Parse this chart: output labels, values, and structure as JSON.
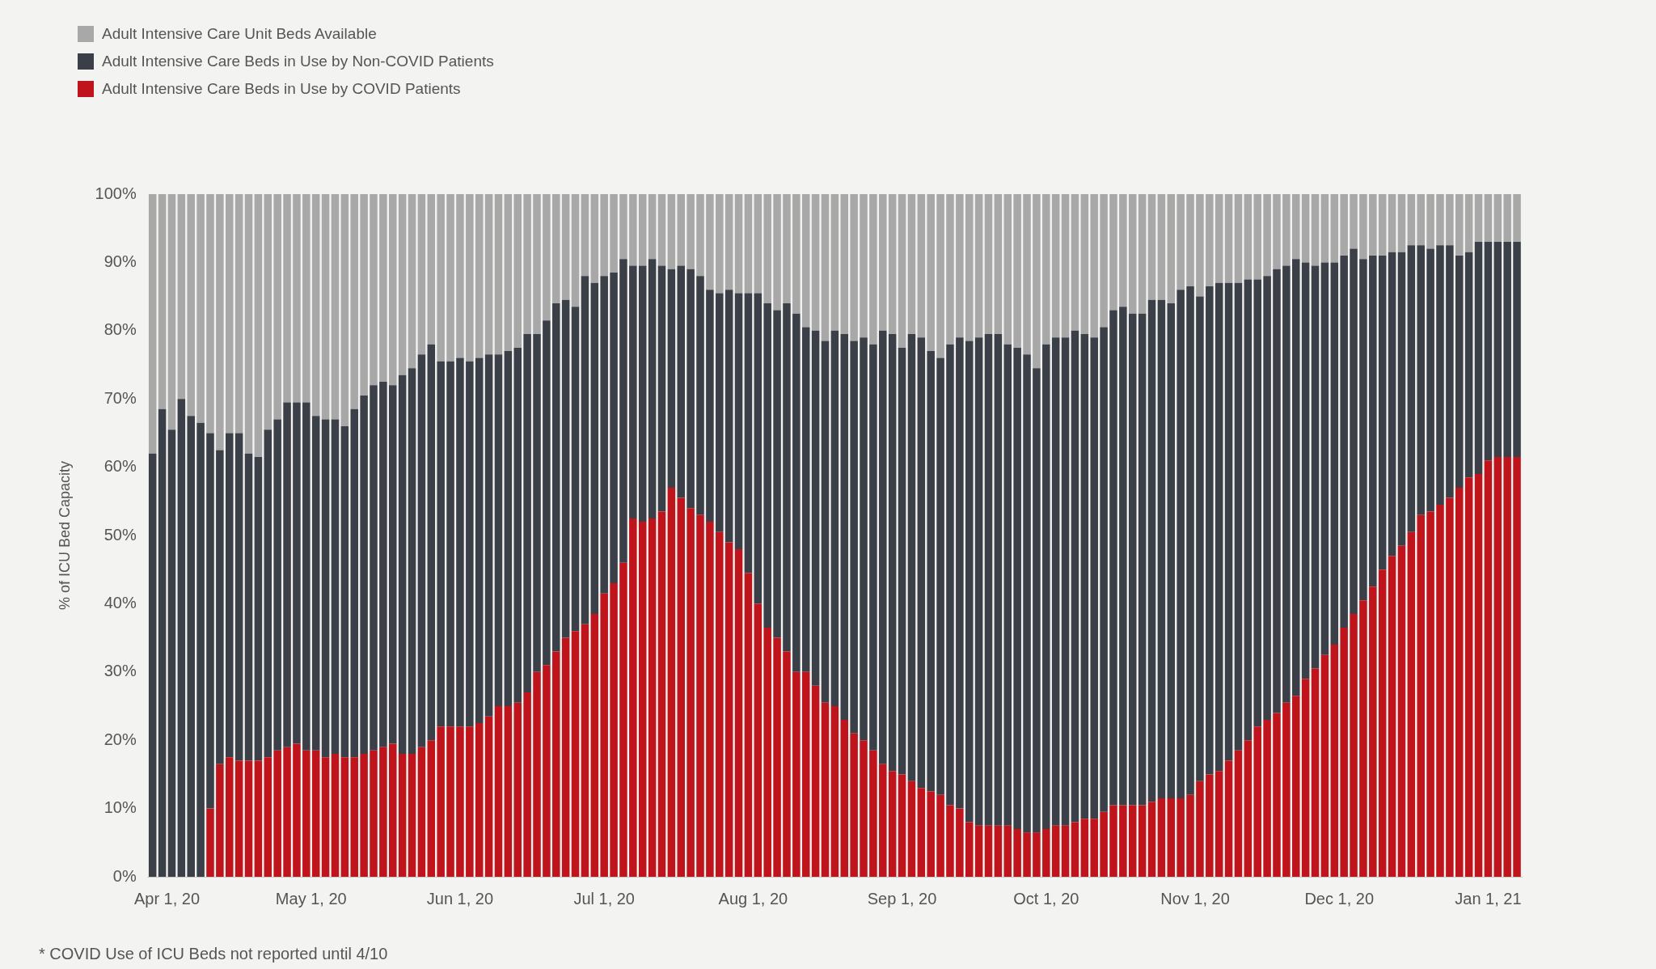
{
  "chart_data": {
    "type": "bar",
    "stacked": true,
    "ylabel": "% of ICU Bed Capacity",
    "legend": "top left",
    "annotations": [
      "* COVID Use of ICU Beds not reported until 4/10"
    ],
    "x": [
      "2020-03-29",
      "2020-03-31",
      "2020-04-02",
      "2020-04-04",
      "2020-04-06",
      "2020-04-08",
      "2020-04-10",
      "2020-04-12",
      "2020-04-14",
      "2020-04-16",
      "2020-04-18",
      "2020-04-20",
      "2020-04-22",
      "2020-04-24",
      "2020-04-26",
      "2020-04-28",
      "2020-04-30",
      "2020-05-02",
      "2020-05-04",
      "2020-05-06",
      "2020-05-08",
      "2020-05-10",
      "2020-05-12",
      "2020-05-14",
      "2020-05-16",
      "2020-05-18",
      "2020-05-20",
      "2020-05-22",
      "2020-05-24",
      "2020-05-26",
      "2020-05-28",
      "2020-05-30",
      "2020-06-01",
      "2020-06-03",
      "2020-06-05",
      "2020-06-07",
      "2020-06-09",
      "2020-06-11",
      "2020-06-13",
      "2020-06-15",
      "2020-06-17",
      "2020-06-19",
      "2020-06-21",
      "2020-06-23",
      "2020-06-25",
      "2020-06-27",
      "2020-06-29",
      "2020-07-01",
      "2020-07-03",
      "2020-07-05",
      "2020-07-07",
      "2020-07-09",
      "2020-07-11",
      "2020-07-13",
      "2020-07-15",
      "2020-07-17",
      "2020-07-19",
      "2020-07-21",
      "2020-07-23",
      "2020-07-25",
      "2020-07-27",
      "2020-07-29",
      "2020-07-31",
      "2020-08-02",
      "2020-08-04",
      "2020-08-06",
      "2020-08-08",
      "2020-08-10",
      "2020-08-12",
      "2020-08-14",
      "2020-08-16",
      "2020-08-18",
      "2020-08-20",
      "2020-08-22",
      "2020-08-24",
      "2020-08-26",
      "2020-08-28",
      "2020-08-30",
      "2020-09-01",
      "2020-09-03",
      "2020-09-05",
      "2020-09-07",
      "2020-09-09",
      "2020-09-11",
      "2020-09-13",
      "2020-09-15",
      "2020-09-17",
      "2020-09-19",
      "2020-09-21",
      "2020-09-23",
      "2020-09-25",
      "2020-09-27",
      "2020-09-29",
      "2020-10-01",
      "2020-10-03",
      "2020-10-05",
      "2020-10-07",
      "2020-10-09",
      "2020-10-11",
      "2020-10-13",
      "2020-10-15",
      "2020-10-17",
      "2020-10-19",
      "2020-10-21",
      "2020-10-23",
      "2020-10-25",
      "2020-10-27",
      "2020-10-29",
      "2020-10-31",
      "2020-11-02",
      "2020-11-04",
      "2020-11-06",
      "2020-11-08",
      "2020-11-10",
      "2020-11-12",
      "2020-11-14",
      "2020-11-16",
      "2020-11-18",
      "2020-11-20",
      "2020-11-22",
      "2020-11-24",
      "2020-11-26",
      "2020-11-28",
      "2020-11-30",
      "2020-12-02",
      "2020-12-04",
      "2020-12-06",
      "2020-12-08",
      "2020-12-10",
      "2020-12-12",
      "2020-12-14",
      "2020-12-16",
      "2020-12-18",
      "2020-12-20",
      "2020-12-22",
      "2020-12-24",
      "2020-12-26",
      "2020-12-28",
      "2020-12-30",
      "2021-01-01",
      "2021-01-03",
      "2021-01-05",
      "2021-01-07"
    ],
    "xlim": [
      "2020-03-28",
      "2021-01-08"
    ],
    "xticks": [
      {
        "value": "2020-04-01",
        "label": "Apr 1, 20"
      },
      {
        "value": "2020-05-01",
        "label": "May 1, 20"
      },
      {
        "value": "2020-06-01",
        "label": "Jun 1, 20"
      },
      {
        "value": "2020-07-01",
        "label": "Jul 1, 20"
      },
      {
        "value": "2020-08-01",
        "label": "Aug 1, 20"
      },
      {
        "value": "2020-09-01",
        "label": "Sep 1, 20"
      },
      {
        "value": "2020-10-01",
        "label": "Oct 1, 20"
      },
      {
        "value": "2020-11-01",
        "label": "Nov 1, 20"
      },
      {
        "value": "2020-12-01",
        "label": "Dec 1, 20"
      },
      {
        "value": "2021-01-01",
        "label": "Jan 1, 21"
      }
    ],
    "ylim": [
      0,
      100
    ],
    "yticks": [
      {
        "value": 0,
        "label": "0%"
      },
      {
        "value": 10,
        "label": "10%"
      },
      {
        "value": 20,
        "label": "20%"
      },
      {
        "value": 30,
        "label": "30%"
      },
      {
        "value": 40,
        "label": "40%"
      },
      {
        "value": 50,
        "label": "50%"
      },
      {
        "value": 60,
        "label": "60%"
      },
      {
        "value": 70,
        "label": "70%"
      },
      {
        "value": 80,
        "label": "80%"
      },
      {
        "value": 90,
        "label": "90%"
      },
      {
        "value": 100,
        "label": "100%"
      }
    ],
    "series": [
      {
        "name": "Adult Intensive Care Beds in Use by COVID Patients",
        "color": "#c0141c",
        "values": [
          null,
          null,
          null,
          null,
          null,
          null,
          10,
          16.5,
          17.5,
          17,
          17,
          17,
          17.5,
          18.5,
          19,
          19.5,
          18.5,
          18.5,
          17.5,
          18,
          17.5,
          17.5,
          18,
          18.5,
          19,
          19.5,
          18,
          18,
          19,
          20,
          22,
          22,
          22,
          22,
          22.5,
          23.5,
          25,
          25,
          25.5,
          27,
          30,
          31,
          33,
          35,
          36,
          37,
          38.5,
          41.5,
          43,
          46,
          52.5,
          52,
          52.5,
          53.5,
          57,
          55.5,
          54,
          53,
          52,
          50.5,
          49,
          48,
          44.5,
          40,
          36.5,
          35,
          33,
          30,
          30,
          28,
          25.5,
          25,
          23,
          21,
          20,
          18.5,
          16.5,
          15.5,
          15,
          14,
          13,
          12.5,
          12,
          10.5,
          10,
          8,
          7.5,
          7.5,
          7.5,
          7.5,
          7,
          6.5,
          6.5,
          7,
          7.5,
          7.5,
          8,
          8.5,
          8.5,
          9.5,
          10.5,
          10.5,
          10.5,
          10.5,
          11,
          11.5,
          11.5,
          11.5,
          12,
          14,
          15,
          15.5,
          17,
          18.5,
          20,
          22,
          23,
          24,
          25.5,
          26.5,
          29,
          30.5,
          32.5,
          34,
          36.5,
          38.5,
          40.5,
          42.5,
          45,
          47,
          48.5,
          50.5,
          53,
          53.5,
          54.5,
          55.5,
          57,
          58.5,
          59,
          61,
          61.5,
          61.5,
          61.5
        ]
      },
      {
        "name": "Adult Intensive Care Beds in Use by Non-COVID Patients",
        "color": "#3b3f48",
        "values": [
          62,
          68.5,
          65.5,
          70,
          67.5,
          66.5,
          55,
          46,
          47.5,
          48,
          45,
          44.5,
          48,
          48.5,
          50.5,
          50,
          51,
          49,
          49.5,
          49,
          48.5,
          51,
          52.5,
          53.5,
          53.5,
          52.5,
          55.5,
          56.5,
          57.5,
          58,
          53.5,
          53.5,
          54,
          53.5,
          53.5,
          53,
          51.5,
          52,
          52,
          52.5,
          49.5,
          50.5,
          51,
          49.5,
          47.5,
          51,
          48.5,
          46.5,
          45.5,
          44.5,
          37,
          37.5,
          38,
          36,
          32,
          34,
          35,
          35,
          34,
          35,
          37,
          37.5,
          41,
          45.5,
          47.5,
          48,
          51,
          52.5,
          50.5,
          52,
          53,
          55,
          56.5,
          57.5,
          59,
          59.5,
          63.5,
          64,
          62.5,
          65.5,
          66,
          64.5,
          64,
          67.5,
          69,
          70.5,
          71.5,
          72,
          72,
          70.5,
          70.5,
          70,
          68,
          71,
          71.5,
          71.5,
          72,
          71,
          70.5,
          71,
          72.5,
          73,
          72,
          72,
          73.5,
          73,
          72.5,
          74.5,
          74.5,
          71,
          71.5,
          71.5,
          70,
          68.5,
          67.5,
          65.5,
          65,
          65,
          64,
          64,
          61,
          59,
          57.5,
          56,
          54.5,
          53.5,
          50,
          48.5,
          46,
          44.5,
          43,
          42,
          39.5,
          38.5,
          38,
          37,
          34,
          33,
          34,
          32,
          31.5,
          31.5,
          31.5
        ]
      },
      {
        "name": "Adult Intensive Care Unit Beds Available",
        "color": "#a8a8a8",
        "values": [
          38,
          31.5,
          34.5,
          30,
          32.5,
          33.5,
          35,
          37.5,
          35,
          35,
          38,
          38.5,
          34.5,
          33,
          30.5,
          30.5,
          30.5,
          32.5,
          33,
          33,
          34,
          31.5,
          29.5,
          28,
          27.5,
          28,
          26.5,
          25.5,
          23.5,
          22,
          24.5,
          24.5,
          24,
          24.5,
          24,
          23.5,
          23.5,
          23,
          22.5,
          20.5,
          20.5,
          18.5,
          16,
          15.5,
          16.5,
          12,
          13,
          12,
          11.5,
          9.5,
          10.5,
          10.5,
          9.5,
          10.5,
          11,
          10.5,
          11,
          12,
          14,
          14.5,
          14,
          14.5,
          14.5,
          14.5,
          16,
          17,
          16,
          17.5,
          19.5,
          20,
          21.5,
          20,
          20.5,
          21.5,
          21,
          22,
          20,
          20.5,
          22.5,
          20.5,
          21,
          23,
          24,
          22,
          21,
          21.5,
          21,
          20.5,
          20.5,
          22,
          22.5,
          23.5,
          25.5,
          22,
          21,
          21,
          20,
          20.5,
          21,
          19.5,
          17,
          16.5,
          17.5,
          17.5,
          15.5,
          15.5,
          16,
          14,
          13.5,
          15,
          13.5,
          13,
          13,
          13,
          12.5,
          12.5,
          12,
          11,
          10.5,
          9.5,
          10,
          10.5,
          10,
          10,
          9,
          8,
          9.5,
          9,
          9,
          8.5,
          8.5,
          7.5,
          7.5,
          8,
          7.5,
          7.5,
          9,
          8.5,
          7,
          7,
          7,
          7,
          7
        ]
      }
    ]
  }
}
